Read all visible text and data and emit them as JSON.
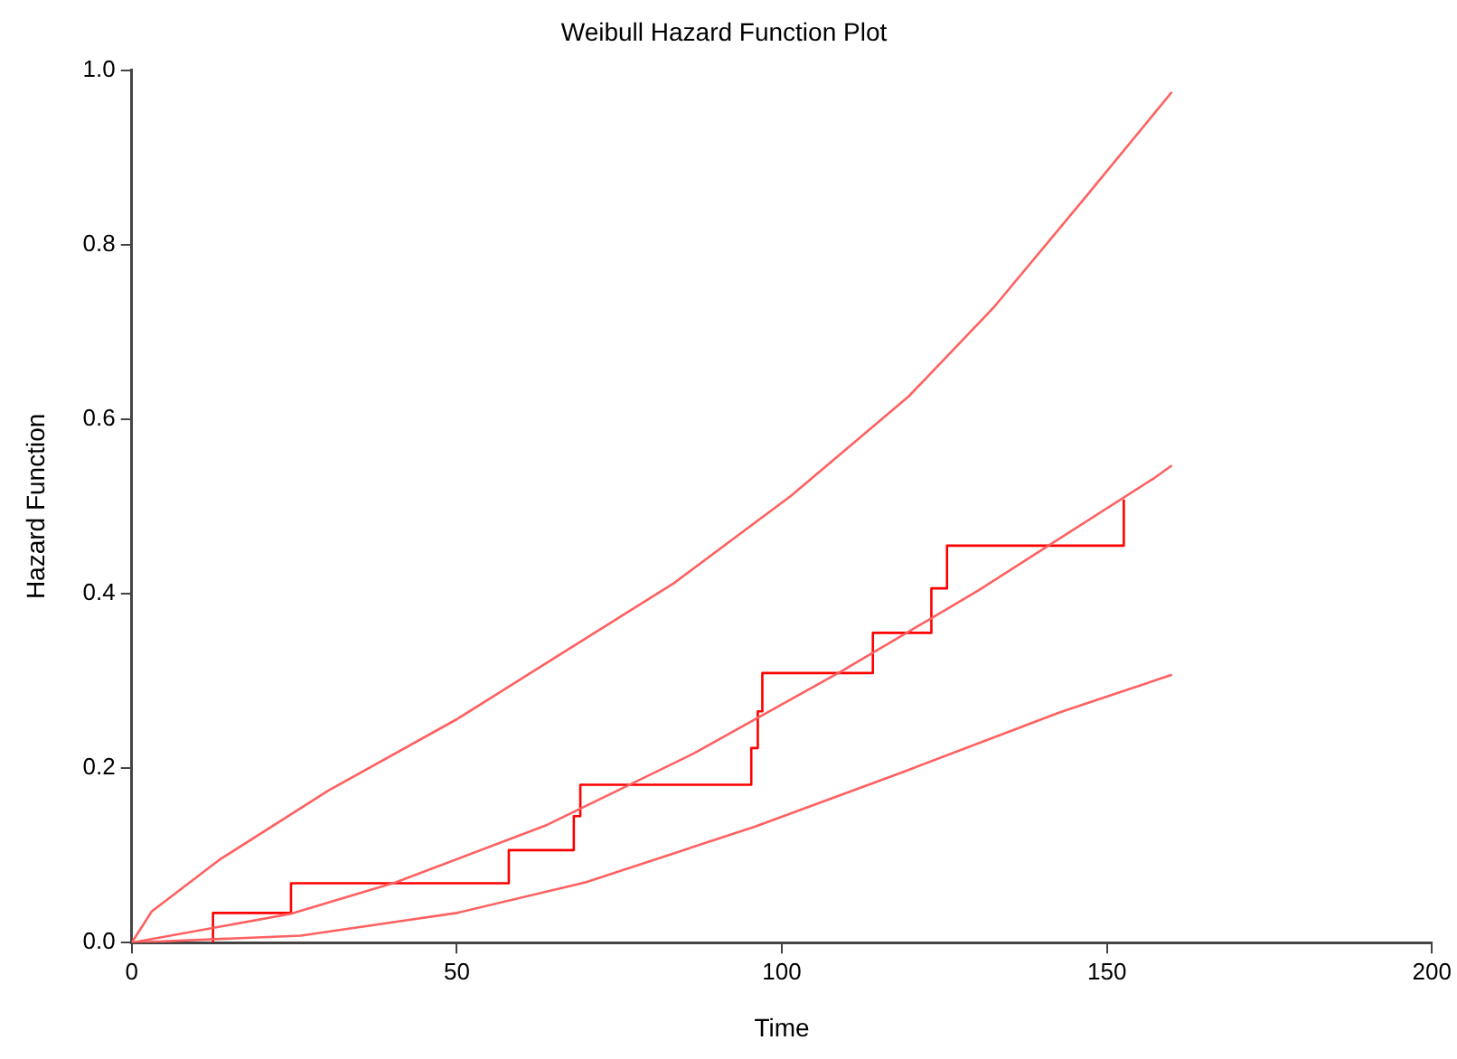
{
  "chart_data": {
    "type": "line",
    "title": "Weibull Hazard Function Plot",
    "xlabel": "Time",
    "ylabel": "Hazard Function",
    "xlim": [
      0,
      200
    ],
    "xticks": [
      0,
      50,
      100,
      150,
      200
    ],
    "ylim": [
      0,
      1
    ],
    "yticks": [
      {
        "value": 0,
        "label": "0.0"
      },
      {
        "value": 0.2,
        "label": "0.2"
      },
      {
        "value": 0.4,
        "label": "0.4"
      },
      {
        "value": 0.6,
        "label": "0.6"
      },
      {
        "value": 0.8,
        "label": "0.8"
      },
      {
        "value": 1,
        "label": "1.0"
      }
    ],
    "grid": false,
    "legend": false,
    "marker": "none",
    "line_style": "solid",
    "series": [
      {
        "color": "#ff6060",
        "x": [
          0,
          3.1,
          13.5,
          30.2,
          50,
          66.7,
          83.4,
          101.4,
          119.5,
          132.7,
          147,
          160
        ],
        "values": [
          0,
          0.036,
          0.095,
          0.174,
          0.256,
          0.334,
          0.412,
          0.512,
          0.626,
          0.729,
          0.857,
          0.975
        ]
      },
      {
        "color": "#ff6060",
        "x": [
          0,
          24.5,
          40.6,
          63.6,
          86.5,
          109.4,
          130.3,
          157.4,
          160
        ],
        "values": [
          0,
          0.033,
          0.069,
          0.134,
          0.217,
          0.312,
          0.404,
          0.533,
          0.547
        ]
      },
      {
        "color": "#ff6060",
        "x": [
          0,
          26,
          50,
          69.8,
          95.9,
          118.8,
          142.8,
          160
        ],
        "values": [
          0,
          0.008,
          0.034,
          0.069,
          0.133,
          0.196,
          0.264,
          0.307
        ]
      },
      {
        "type": "step",
        "color": "#ff0000",
        "x": [
          12.5,
          12.5,
          24.5,
          58,
          68,
          69,
          95.3,
          96.3,
          97,
          114,
          123,
          125.4,
          152.6
        ],
        "values": [
          0,
          0.034,
          0.068,
          0.106,
          0.145,
          0.181,
          0.223,
          0.265,
          0.309,
          0.355,
          0.406,
          0.455,
          0.508
        ]
      }
    ]
  }
}
